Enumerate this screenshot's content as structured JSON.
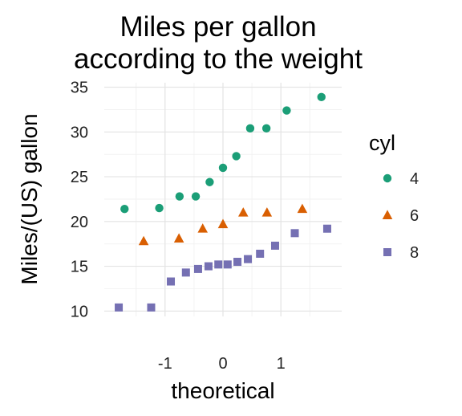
{
  "chart_data": {
    "type": "scatter",
    "title_lines": [
      "Miles per gallon",
      "according to the weight"
    ],
    "xlabel": "theoretical",
    "ylabel": "Miles/(US) gallon",
    "xlim": [
      -2.05,
      2.05
    ],
    "ylim": [
      9.4,
      35.5
    ],
    "xticks": [
      -1,
      0,
      1
    ],
    "xtick_labels": [
      "-1",
      "0",
      "1"
    ],
    "yticks": [
      10,
      15,
      20,
      25,
      30,
      35
    ],
    "ytick_labels": [
      "10",
      "15",
      "20",
      "25",
      "30",
      "35"
    ],
    "grid": true,
    "legend": {
      "title": "cyl",
      "placement": "right"
    },
    "series": [
      {
        "name": "4",
        "shape": "circle",
        "color": "#1B9E77",
        "x": [
          -1.7,
          -1.1,
          -0.75,
          -0.47,
          -0.23,
          0.0,
          0.23,
          0.47,
          0.75,
          1.1,
          1.7
        ],
        "y": [
          21.4,
          21.5,
          22.8,
          22.8,
          24.4,
          26.0,
          27.3,
          30.4,
          30.4,
          32.4,
          33.9
        ]
      },
      {
        "name": "6",
        "shape": "triangle",
        "color": "#D95F02",
        "x": [
          -1.37,
          -0.76,
          -0.35,
          0.0,
          0.35,
          0.76,
          1.37
        ],
        "y": [
          17.8,
          18.1,
          19.2,
          19.7,
          21.0,
          21.0,
          21.4
        ]
      },
      {
        "name": "8",
        "shape": "square",
        "color": "#7570B3",
        "x": [
          -1.8,
          -1.24,
          -0.9,
          -0.64,
          -0.43,
          -0.25,
          -0.08,
          0.08,
          0.25,
          0.43,
          0.64,
          0.9,
          1.24,
          1.8
        ],
        "y": [
          10.4,
          10.4,
          13.3,
          14.3,
          14.7,
          15.0,
          15.2,
          15.2,
          15.5,
          15.8,
          16.4,
          17.3,
          18.7,
          19.2
        ]
      }
    ]
  }
}
